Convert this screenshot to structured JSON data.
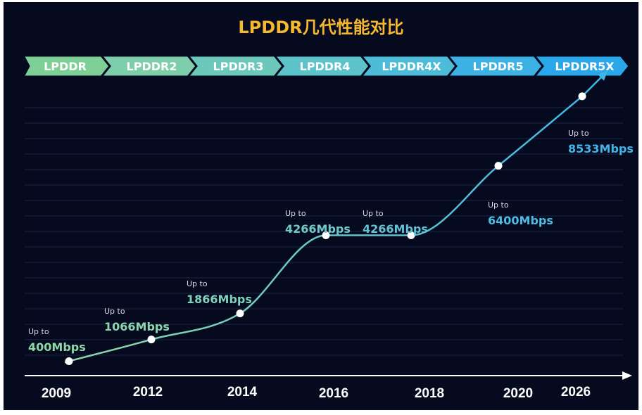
{
  "chart_data": {
    "type": "line",
    "title": "LPDDR几代性能对比",
    "generations": [
      "LPDDR",
      "LPDDR2",
      "LPDDR3",
      "LPDDR4",
      "LPDDR4X",
      "LPDDR5",
      "LPDDR5X"
    ],
    "categories": [
      "2009",
      "2012",
      "2014",
      "2016",
      "2018",
      "2020",
      "2026"
    ],
    "series": [
      {
        "values": [
          400,
          1066,
          1866,
          4266,
          4266,
          6400,
          8533
        ],
        "labels": [
          "400Mbps",
          "1066Mbps",
          "1866Mbps",
          "4266Mbps",
          "4266Mbps",
          "6400Mbps",
          "8533Mbps"
        ]
      }
    ],
    "prefix_label": "Up to",
    "xlabel": "",
    "ylabel": "",
    "grid": true,
    "colors": {
      "line_start": "#8fd9a8",
      "line_end": "#3fb5e8",
      "title": "#f5b82e",
      "background": "#060a1f"
    }
  }
}
